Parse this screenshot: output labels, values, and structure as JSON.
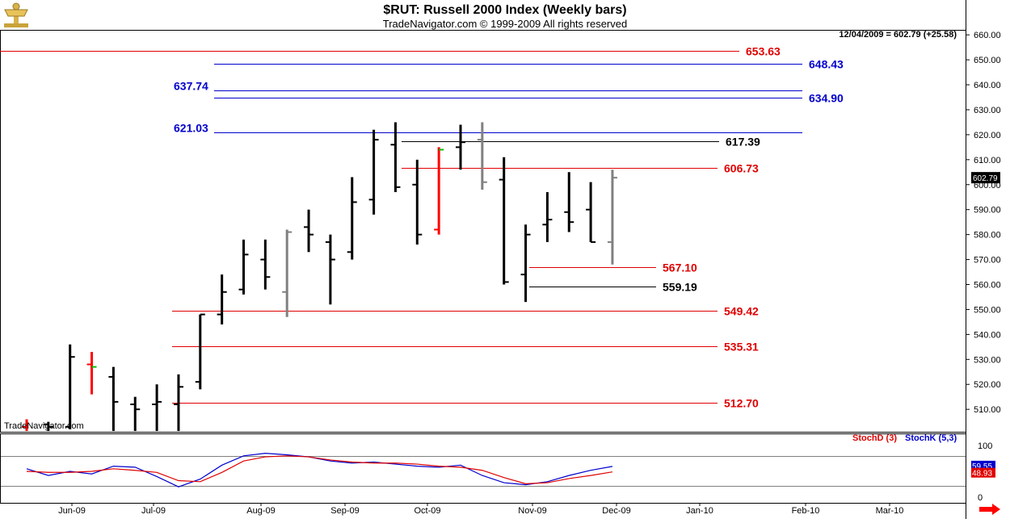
{
  "header": {
    "title": "$RUT:  Russell 2000 Index  (Weekly bars)",
    "subtitle": "TradeNavigator.com © 1999-2009 All rights reserved",
    "readout": "12/04/2009 = 602.79 (+25.58)",
    "watermark": "TradeNavigator.com"
  },
  "indicator": {
    "stochd_label": "StochD (3)",
    "stochk_label": "StochK (5,3)",
    "axis_ticks": [
      "100",
      "0"
    ],
    "stochk_last": "59.55",
    "stochd_last": "48.93"
  },
  "colors": {
    "up_bar": "#000000",
    "up_bar_alt": "#808080",
    "down_bar": "#ff0000",
    "red_level": "#e00000",
    "blue_level": "#0000cc",
    "stochd": "#e00000",
    "stochk": "#0000cc"
  },
  "chart_data": {
    "type": "ohlc",
    "title": "$RUT:  Russell 2000 Index  (Weekly bars)",
    "y_axis": {
      "ticks": [
        "510.00",
        "520.00",
        "530.00",
        "540.00",
        "550.00",
        "560.00",
        "570.00",
        "580.00",
        "590.00",
        "600.00",
        "610.00",
        "620.00",
        "630.00",
        "640.00",
        "650.00",
        "660.00"
      ],
      "ylim": [
        501,
        662
      ],
      "last_price": "602.79"
    },
    "x_axis": {
      "tick_labels": [
        "Jun-09",
        "Jul-09",
        "Aug-09",
        "Sep-09",
        "Oct-09",
        "Nov-09",
        "Dec-09",
        "Jan-10",
        "Feb-10",
        "Mar-10"
      ]
    },
    "bars": [
      {
        "o": 503,
        "h": 506,
        "l": 500,
        "c": 501,
        "color": "down"
      },
      {
        "o": 504,
        "h": 505,
        "l": 500,
        "c": 503,
        "color": "up"
      },
      {
        "o": 503,
        "h": 536,
        "l": 502,
        "c": 531,
        "color": "up"
      },
      {
        "o": 528,
        "h": 533,
        "l": 516,
        "c": 527,
        "color": "down"
      },
      {
        "o": 523,
        "h": 527,
        "l": 500,
        "c": 513,
        "color": "up"
      },
      {
        "o": 512,
        "h": 515,
        "l": 500,
        "c": 510,
        "color": "up"
      },
      {
        "o": 512,
        "h": 520,
        "l": 500,
        "c": 513,
        "color": "up"
      },
      {
        "o": 512,
        "h": 524,
        "l": 500,
        "c": 519,
        "color": "up"
      },
      {
        "o": 521,
        "h": 548,
        "l": 518,
        "c": 548,
        "color": "up"
      },
      {
        "o": 548,
        "h": 564,
        "l": 544,
        "c": 557,
        "color": "up"
      },
      {
        "o": 558,
        "h": 578,
        "l": 556,
        "c": 572,
        "color": "up"
      },
      {
        "o": 570,
        "h": 578,
        "l": 558,
        "c": 563,
        "color": "up"
      },
      {
        "o": 557,
        "h": 582,
        "l": 547,
        "c": 581,
        "color": "alt"
      },
      {
        "o": 583,
        "h": 590,
        "l": 573,
        "c": 580,
        "color": "up"
      },
      {
        "o": 577,
        "h": 580,
        "l": 552,
        "c": 570,
        "color": "up"
      },
      {
        "o": 573,
        "h": 603,
        "l": 570,
        "c": 593,
        "color": "up"
      },
      {
        "o": 594,
        "h": 622,
        "l": 588,
        "c": 618,
        "color": "up"
      },
      {
        "o": 616,
        "h": 625,
        "l": 597,
        "c": 599,
        "color": "up"
      },
      {
        "o": 600,
        "h": 610,
        "l": 576,
        "c": 580,
        "color": "up"
      },
      {
        "o": 582,
        "h": 615,
        "l": 580,
        "c": 614,
        "color": "down"
      },
      {
        "o": 615,
        "h": 624,
        "l": 606,
        "c": 617,
        "color": "up"
      },
      {
        "o": 618,
        "h": 625,
        "l": 598,
        "c": 601,
        "color": "alt"
      },
      {
        "o": 602,
        "h": 611,
        "l": 560,
        "c": 561,
        "color": "up"
      },
      {
        "o": 564,
        "h": 584,
        "l": 553,
        "c": 580,
        "color": "up"
      },
      {
        "o": 584,
        "h": 597,
        "l": 577,
        "c": 586,
        "color": "up"
      },
      {
        "o": 589,
        "h": 605,
        "l": 581,
        "c": 585,
        "color": "up"
      },
      {
        "o": 590,
        "h": 601,
        "l": 577,
        "c": 577,
        "color": "up"
      },
      {
        "o": 577,
        "h": 606,
        "l": 568,
        "c": 602.79,
        "color": "alt"
      }
    ],
    "levels": [
      {
        "value": 653.63,
        "label": "653.63",
        "color": "red"
      },
      {
        "value": 648.43,
        "label": "648.43",
        "color": "blue"
      },
      {
        "value": 637.74,
        "label": "637.74",
        "color": "blue",
        "label_side": "left"
      },
      {
        "value": 634.9,
        "label": "634.90",
        "color": "blue"
      },
      {
        "value": 621.03,
        "label": "621.03",
        "color": "blue",
        "label_side": "left"
      },
      {
        "value": 617.39,
        "label": "617.39",
        "color": "black"
      },
      {
        "value": 606.73,
        "label": "606.73",
        "color": "red"
      },
      {
        "value": 567.1,
        "label": "567.10",
        "color": "red"
      },
      {
        "value": 559.19,
        "label": "559.19",
        "color": "black"
      },
      {
        "value": 549.42,
        "label": "549.42",
        "color": "red"
      },
      {
        "value": 535.31,
        "label": "535.31",
        "color": "red"
      },
      {
        "value": 512.7,
        "label": "512.70",
        "color": "red"
      }
    ],
    "stochastic": {
      "ylim": [
        0,
        100
      ],
      "stochk": [
        55,
        42,
        50,
        45,
        60,
        58,
        40,
        20,
        35,
        62,
        80,
        85,
        82,
        78,
        70,
        66,
        68,
        64,
        60,
        58,
        62,
        42,
        28,
        24,
        30,
        42,
        52,
        59.55
      ],
      "stochd": [
        50,
        48,
        48,
        50,
        55,
        52,
        48,
        32,
        30,
        48,
        70,
        78,
        80,
        78,
        72,
        68,
        66,
        66,
        64,
        60,
        58,
        52,
        38,
        26,
        28,
        36,
        42,
        48.93
      ]
    }
  }
}
